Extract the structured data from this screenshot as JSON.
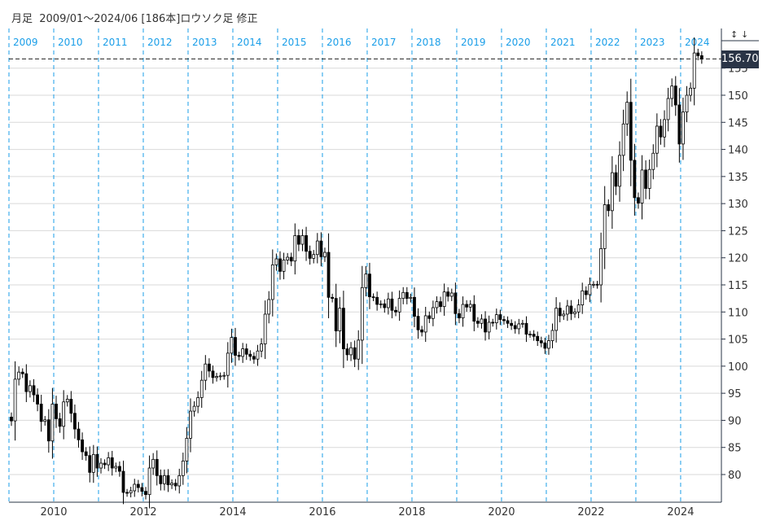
{
  "header": {
    "title": "月足  2009/01～2024/06 [186本]ロウソク足 修正"
  },
  "controls": {
    "expand_icon": "↕",
    "down_icon": "↓"
  },
  "current_price_label": "156.70",
  "colors": {
    "year_line": "#1a9ee8",
    "grid": "#d9d9d9",
    "axis": "#2a3446",
    "price_tag": "#2a3446"
  },
  "chart_data": {
    "type": "candlestick",
    "title": "月足 2009/01～2024/06 [186本]ロウソク足 修正",
    "start": "2009-01",
    "first_open": 90.6,
    "current_price": 156.7,
    "ylim": [
      75.5,
      158.5
    ],
    "y_ticks": [
      "80",
      "85",
      "90",
      "95",
      "100",
      "105",
      "110",
      "115",
      "120",
      "125",
      "130",
      "135",
      "140",
      "145",
      "150",
      "155"
    ],
    "x_ticks": [
      "2010",
      "2012",
      "2014",
      "2016",
      "2018",
      "2020",
      "2022",
      "2024"
    ],
    "year_labels": [
      "2009",
      "2010",
      "2011",
      "2012",
      "2013",
      "2014",
      "2015",
      "2016",
      "2017",
      "2018",
      "2019",
      "2020",
      "2021",
      "2022",
      "2023",
      "2024"
    ],
    "closes": [
      89.9,
      97.6,
      98.9,
      98.6,
      95.3,
      96.4,
      94.7,
      93.0,
      89.8,
      90.1,
      86.2,
      93.0,
      90.3,
      88.9,
      93.4,
      93.9,
      91.3,
      88.4,
      86.4,
      84.2,
      83.5,
      80.4,
      83.7,
      81.2,
      82.1,
      81.8,
      83.1,
      81.2,
      81.5,
      80.6,
      76.7,
      76.6,
      77.0,
      78.2,
      77.6,
      76.9,
      76.3,
      81.2,
      82.8,
      79.8,
      78.3,
      79.8,
      78.1,
      78.4,
      77.9,
      79.8,
      82.5,
      86.7,
      91.7,
      92.6,
      94.2,
      97.4,
      100.4,
      99.1,
      97.9,
      98.1,
      98.2,
      98.3,
      102.4,
      105.3,
      102.0,
      101.8,
      103.2,
      102.2,
      101.8,
      101.3,
      102.8,
      104.1,
      109.6,
      112.3,
      118.7,
      119.8,
      117.5,
      119.6,
      120.1,
      119.4,
      124.1,
      122.5,
      124.1,
      121.2,
      119.9,
      120.6,
      123.1,
      120.2,
      121.0,
      112.7,
      112.5,
      106.5,
      110.7,
      103.2,
      102.1,
      103.4,
      101.3,
      104.8,
      114.5,
      117.0,
      112.8,
      112.7,
      111.4,
      111.5,
      110.8,
      112.4,
      110.3,
      110.0,
      112.5,
      113.6,
      112.5,
      112.7,
      109.2,
      106.7,
      106.3,
      109.3,
      108.8,
      110.8,
      111.9,
      111.0,
      113.7,
      112.9,
      113.5,
      109.7,
      108.9,
      111.4,
      110.9,
      111.4,
      108.3,
      107.9,
      108.7,
      106.3,
      108.1,
      108.0,
      109.5,
      108.6,
      108.4,
      107.9,
      107.5,
      106.9,
      107.8,
      107.9,
      105.9,
      105.9,
      105.5,
      104.7,
      104.3,
      103.3,
      104.7,
      106.6,
      110.7,
      109.3,
      109.6,
      111.1,
      109.7,
      110.0,
      111.3,
      113.9,
      113.2,
      115.1,
      115.1,
      115.0,
      121.7,
      129.8,
      128.7,
      135.7,
      133.2,
      138.9,
      144.7,
      148.7,
      138.0,
      131.1,
      130.1,
      136.2,
      132.8,
      136.3,
      139.3,
      144.3,
      142.3,
      145.5,
      149.4,
      151.7,
      148.2,
      141.0,
      146.9,
      150.0,
      151.3,
      157.8,
      157.3,
      156.7
    ]
  }
}
